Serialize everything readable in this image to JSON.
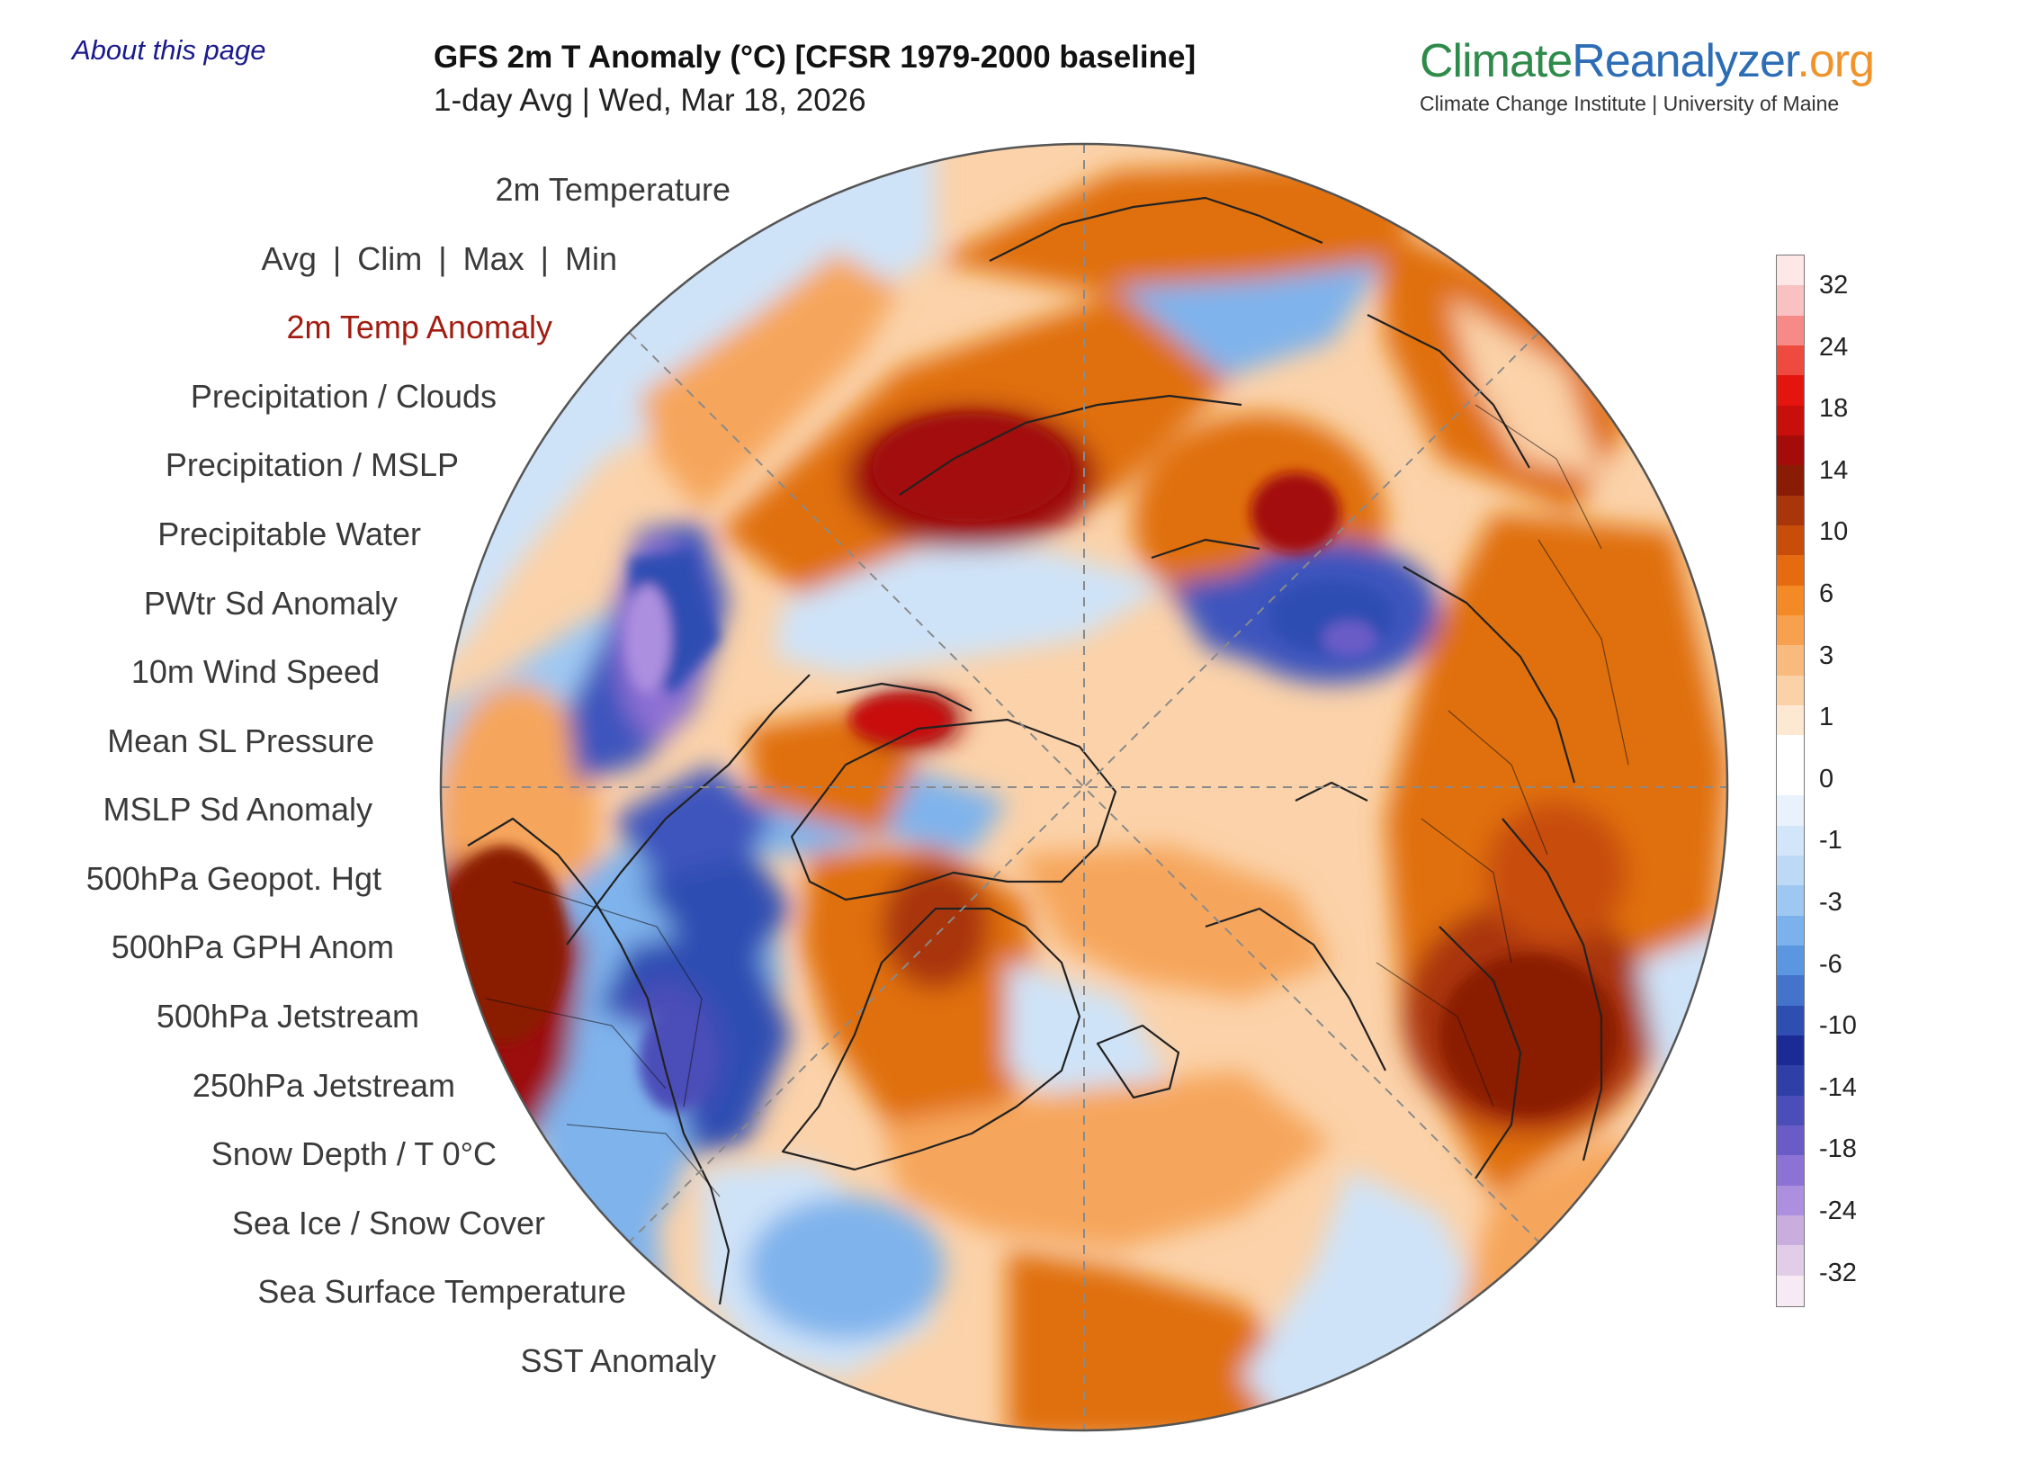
{
  "header": {
    "about_link": "About this page",
    "title": "GFS 2m T Anomaly (°C) [CFSR 1979-2000 baseline]",
    "subtitle": "1-day Avg | Wed, Mar 18, 2026"
  },
  "brand": {
    "part1": "Climate",
    "part2": "Reanalyzer",
    "part3": ".org",
    "tagline": "Climate Change Institute | University of Maine",
    "colors": {
      "climate": "#2e8b4a",
      "reanalyzer": "#2d6db5",
      "org": "#f0932b"
    }
  },
  "menu": {
    "temperature": "2m Temperature",
    "stats": [
      "Avg",
      "Clim",
      "Max",
      "Min"
    ],
    "separator": "|",
    "items": [
      "2m Temp Anomaly",
      "Precipitation / Clouds",
      "Precipitation / MSLP",
      "Precipitable Water",
      "PWtr Sd Anomaly",
      "10m Wind Speed",
      "Mean SL Pressure",
      "MSLP Sd Anomaly",
      "500hPa Geopot. Hgt",
      "500hPa GPH Anom",
      "500hPa Jetstream",
      "250hPa Jetstream",
      "Snow Depth / T 0°C",
      "Sea Ice / Snow Cover",
      "Sea Surface Temperature",
      "SST Anomaly"
    ],
    "active_item": "2m Temp Anomaly",
    "active_color": "#a11d12"
  },
  "colorbar": {
    "ticks": [
      "32",
      "24",
      "18",
      "14",
      "10",
      "6",
      "3",
      "1",
      "0",
      "-1",
      "-3",
      "-6",
      "-10",
      "-14",
      "-18",
      "-24",
      "-32"
    ],
    "colors": [
      "#fde7e7",
      "#f9c1c1",
      "#f58a86",
      "#ee4a3f",
      "#e4140f",
      "#c90f0b",
      "#a30c08",
      "#8a1c06",
      "#a9350a",
      "#c84d0b",
      "#e66a10",
      "#f38a25",
      "#f7a14f",
      "#f9ba7d",
      "#fbd2a8",
      "#fde8d2",
      "#ffffff",
      "#ffffff",
      "#e9f2fc",
      "#d3e6f9",
      "#bcd9f6",
      "#9ec8f2",
      "#7bb2ec",
      "#5b96e0",
      "#4373ca",
      "#2f4eb2",
      "#1b2b95",
      "#2e3fa7",
      "#4b4db8",
      "#6a5cc7",
      "#8c72d5",
      "#ad8fe0",
      "#c9addf",
      "#e2cde9",
      "#f7eaf4"
    ]
  },
  "map": {
    "projection": "North Polar orthographic",
    "variable": "2m temperature anomaly (°C)",
    "colors": {
      "deep_warm": "#9c1008",
      "warm": "#e0700f",
      "mild_warm": "#f6a65b",
      "light_warm": "#fbd2a9",
      "neutral": "#ffffff",
      "light_cool": "#cfe3f8",
      "cool": "#7fb3ec",
      "cold": "#3d55bd",
      "very_cold": "#8e6fd4"
    }
  }
}
